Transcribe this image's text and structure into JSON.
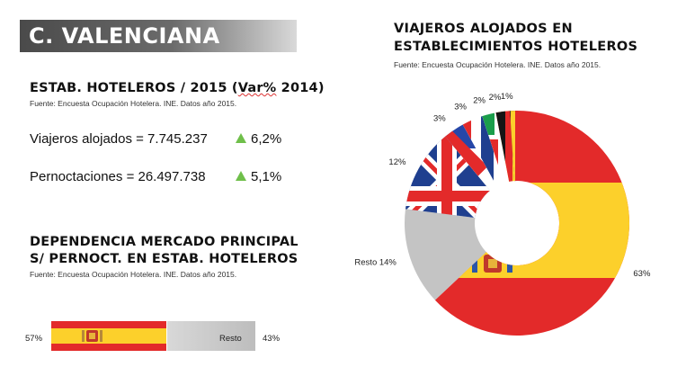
{
  "region": "C. VALENCIANA",
  "estab": {
    "title_main": "ESTAB. HOTELEROS / 2015 (",
    "title_var": "Var%",
    "title_end": " 2014)",
    "source": "Fuente: Encuesta Ocupación Hotelera. INE. Datos año 2015.",
    "viajeros_label": "Viajeros alojados = 7.745.237",
    "viajeros_change": "6,2%",
    "pernoct_label": "Pernoctaciones =  26.497.738",
    "pernoct_change": "5,1%"
  },
  "dependencia": {
    "title_line1": "DEPENDENCIA MERCADO PRINCIPAL",
    "title_line2": "S/ PERNOCT. EN ESTAB. HOTELEROS",
    "source": "Fuente: Encuesta Ocupación Hotelera. INE. Datos año 2015.",
    "main_pct": "57%",
    "rest_label": "Resto",
    "rest_pct": "43%"
  },
  "viajeros": {
    "title_line1": "VIAJEROS ALOJADOS EN",
    "title_line2": "ESTABLECIMIENTOS HOTELEROS",
    "source": "Fuente: Encuesta Ocupación Hotelera. INE. Datos año 2015."
  },
  "colors": {
    "spain_red": "#e32a2a",
    "spain_yellow": "#fcd02b",
    "rest_gray": "#c4c4c4",
    "uk_blue": "#1f3f8f",
    "france_blue": "#2647a8",
    "italy_green": "#1b9e4b",
    "germany_black": "#151515",
    "accent_green": "#6fbf4a"
  },
  "chart_data": [
    {
      "type": "pie",
      "title": "VIAJEROS ALOJADOS EN ESTABLECIMIENTOS HOTELEROS",
      "slices": [
        {
          "label": "España",
          "value": 63,
          "data_label": "63%",
          "style": "spain-flag"
        },
        {
          "label": "Resto",
          "value": 14,
          "data_label": "Resto 14%",
          "style": "gray"
        },
        {
          "label": "Reino Unido",
          "value": 12,
          "data_label": "12%",
          "style": "uk-flag"
        },
        {
          "label": "Francia",
          "value": 3,
          "data_label": "3%",
          "style": "france-flag"
        },
        {
          "label": "Países Bajos",
          "value": 3,
          "data_label": "3%",
          "style": "netherlands-flag"
        },
        {
          "label": "Italia",
          "value": 2,
          "data_label": "2%",
          "style": "italy-flag"
        },
        {
          "label": "Alemania",
          "value": 2,
          "data_label": "2%",
          "style": "germany-flag"
        },
        {
          "label": "Bélgica",
          "value": 1,
          "data_label": "1%",
          "style": "belgium-flag"
        }
      ],
      "donut": true,
      "legend": "none"
    },
    {
      "type": "bar",
      "title": "DEPENDENCIA MERCADO PRINCIPAL S/ PERNOCT. EN ESTAB. HOTELEROS",
      "orientation": "horizontal-stacked",
      "series": [
        {
          "label": "España",
          "value": 57,
          "data_label": "57%"
        },
        {
          "label": "Resto",
          "value": 43,
          "data_label": "43%"
        }
      ]
    }
  ]
}
